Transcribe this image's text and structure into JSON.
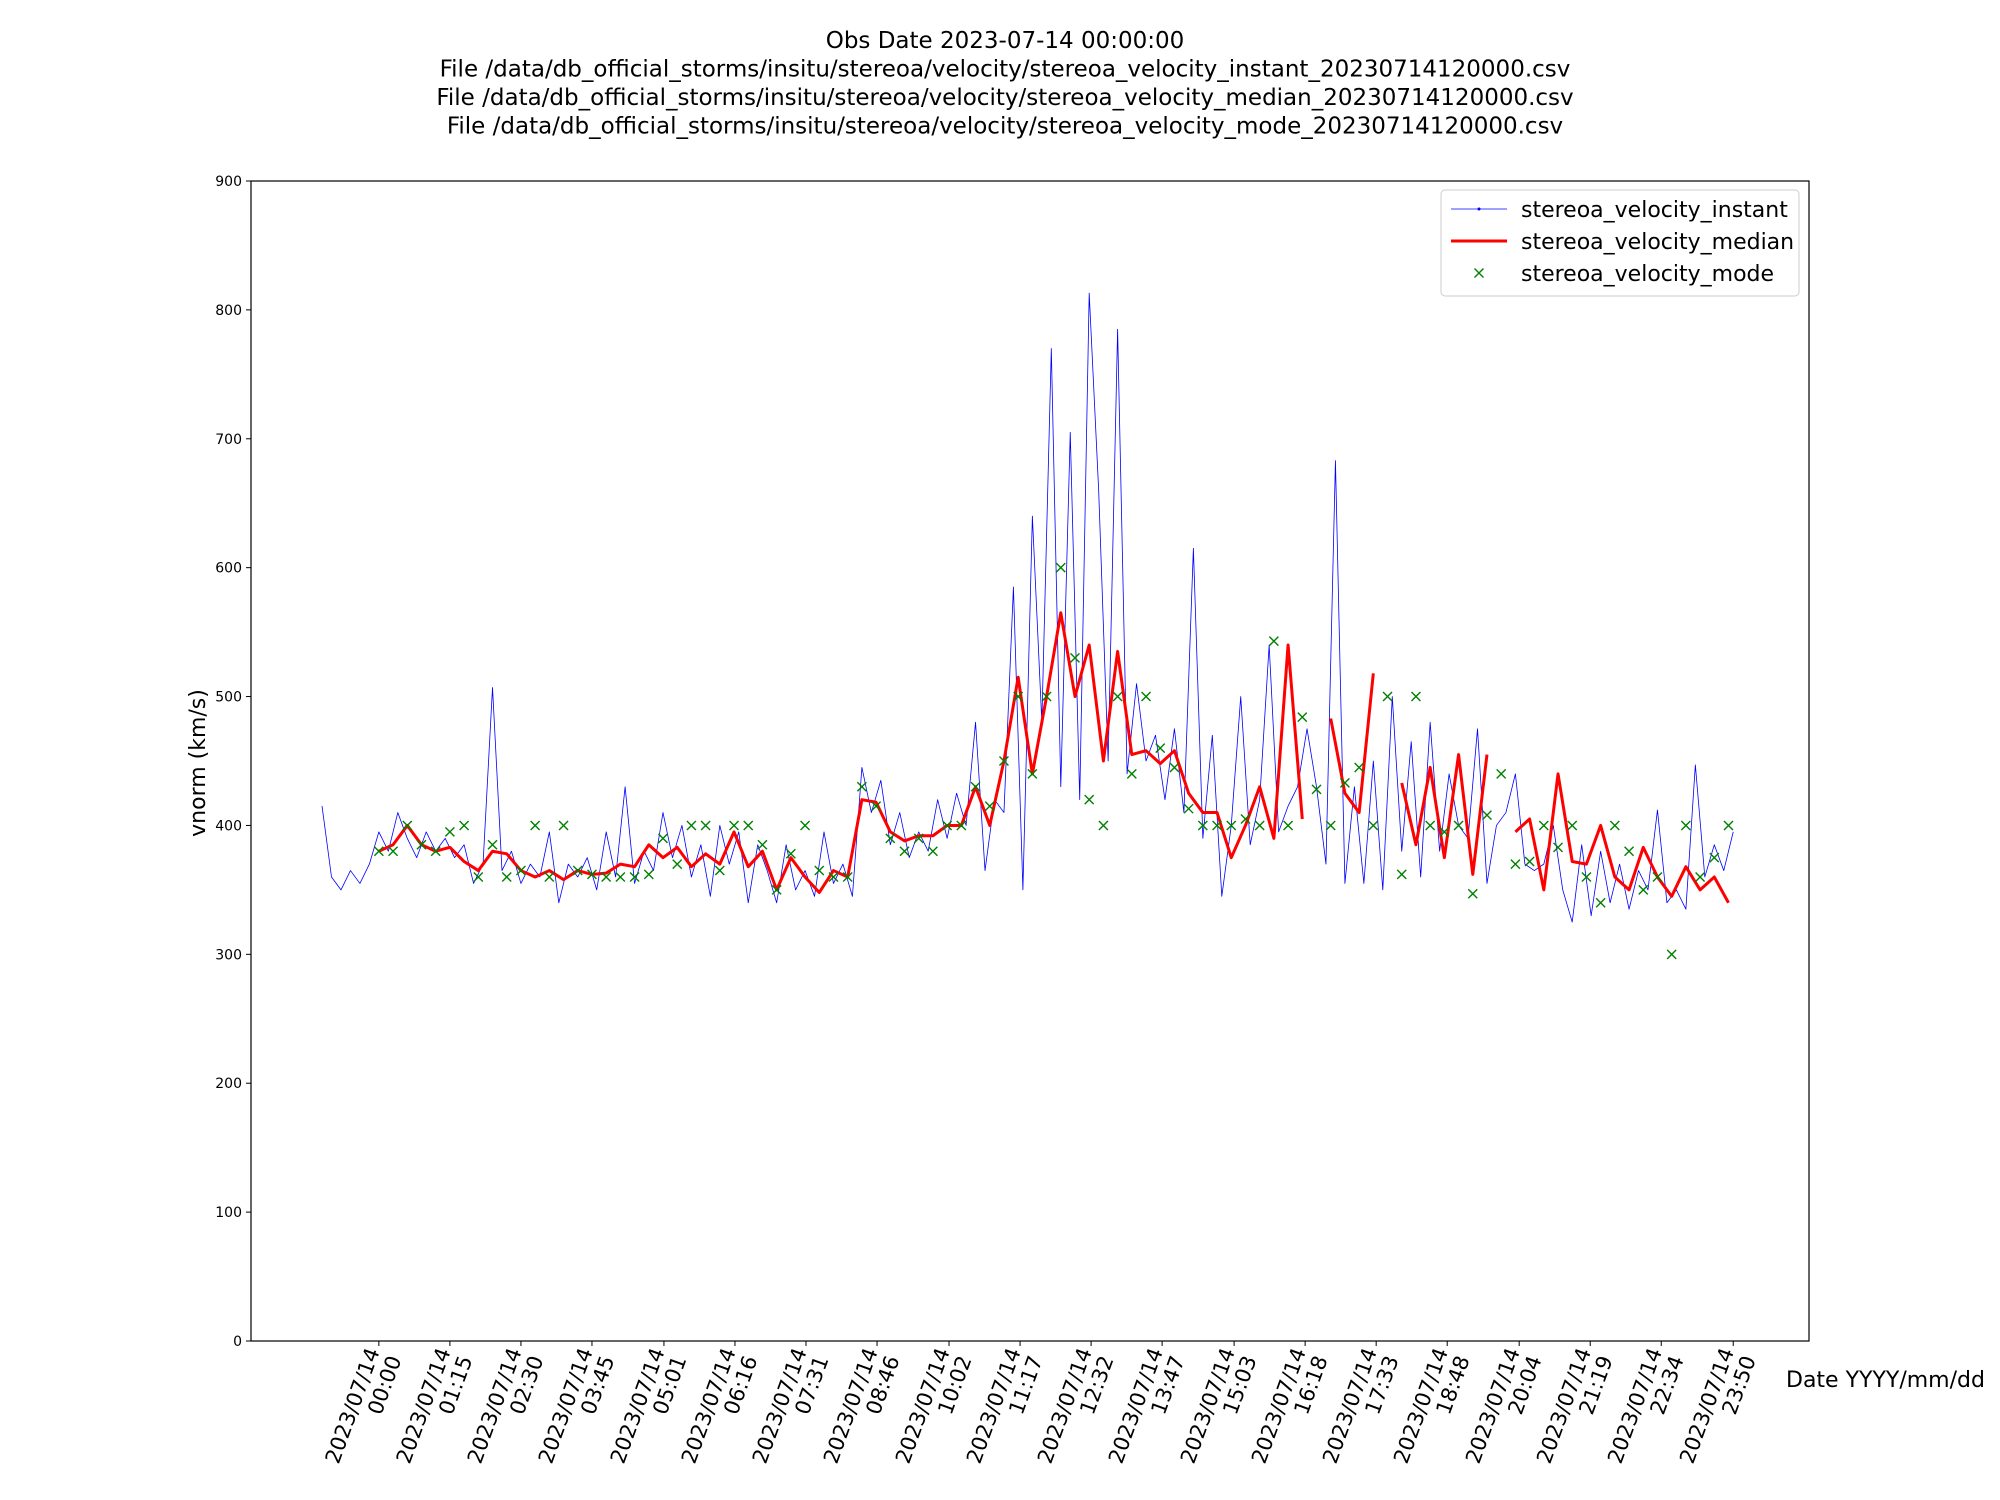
{
  "chart_data": {
    "type": "line",
    "title": [
      "Obs Date 2023-07-14 00:00:00",
      "File /data/db_official_storms/insitu/stereoa/velocity/stereoa_velocity_instant_20230714120000.csv",
      "File /data/db_official_storms/insitu/stereoa/velocity/stereoa_velocity_median_20230714120000.csv",
      "File /data/db_official_storms/insitu/stereoa/velocity/stereoa_velocity_mode_20230714120000.csv"
    ],
    "xlabel": "Date YYYY/mm/dd",
    "ylabel": "vnorm (km/s)",
    "xlim": [
      "2023-07-13T21:45",
      "2023-07-15T01:10"
    ],
    "ylim": [
      0,
      900
    ],
    "yticks": [
      0,
      100,
      200,
      300,
      400,
      500,
      600,
      700,
      800,
      900
    ],
    "xticks": [
      {
        "value": "2023-07-14T00:00",
        "label": "2023/07/14\n00:00"
      },
      {
        "value": "2023-07-14T01:15",
        "label": "2023/07/14\n01:15"
      },
      {
        "value": "2023-07-14T02:30",
        "label": "2023/07/14\n02:30"
      },
      {
        "value": "2023-07-14T03:45",
        "label": "2023/07/14\n03:45"
      },
      {
        "value": "2023-07-14T05:01",
        "label": "2023/07/14\n05:01"
      },
      {
        "value": "2023-07-14T06:16",
        "label": "2023/07/14\n06:16"
      },
      {
        "value": "2023-07-14T07:31",
        "label": "2023/07/14\n07:31"
      },
      {
        "value": "2023-07-14T08:46",
        "label": "2023/07/14\n08:46"
      },
      {
        "value": "2023-07-14T10:02",
        "label": "2023/07/14\n10:02"
      },
      {
        "value": "2023-07-14T11:17",
        "label": "2023/07/14\n11:17"
      },
      {
        "value": "2023-07-14T12:32",
        "label": "2023/07/14\n12:32"
      },
      {
        "value": "2023-07-14T13:47",
        "label": "2023/07/14\n13:47"
      },
      {
        "value": "2023-07-14T15:03",
        "label": "2023/07/14\n15:03"
      },
      {
        "value": "2023-07-14T16:18",
        "label": "2023/07/14\n16:18"
      },
      {
        "value": "2023-07-14T17:33",
        "label": "2023/07/14\n17:33"
      },
      {
        "value": "2023-07-14T18:48",
        "label": "2023/07/14\n18:48"
      },
      {
        "value": "2023-07-14T20:04",
        "label": "2023/07/14\n20:04"
      },
      {
        "value": "2023-07-14T21:19",
        "label": "2023/07/14\n21:19"
      },
      {
        "value": "2023-07-14T22:34",
        "label": "2023/07/14\n22:34"
      },
      {
        "value": "2023-07-14T23:50",
        "label": "2023/07/14\n23:50"
      }
    ],
    "legend": "upper right",
    "series": [
      {
        "name": "stereoa_velocity_instant",
        "color": "#0000ff",
        "style": "line",
        "x": [
          "2023-07-13T23:00",
          "2023-07-13T23:10",
          "2023-07-13T23:20",
          "2023-07-13T23:30",
          "2023-07-13T23:40",
          "2023-07-13T23:50",
          "2023-07-14T00:00",
          "2023-07-14T00:10",
          "2023-07-14T00:20",
          "2023-07-14T00:30",
          "2023-07-14T00:40",
          "2023-07-14T00:50",
          "2023-07-14T01:00",
          "2023-07-14T01:10",
          "2023-07-14T01:20",
          "2023-07-14T01:30",
          "2023-07-14T01:40",
          "2023-07-14T01:50",
          "2023-07-14T02:00",
          "2023-07-14T02:10",
          "2023-07-14T02:20",
          "2023-07-14T02:30",
          "2023-07-14T02:40",
          "2023-07-14T02:50",
          "2023-07-14T03:00",
          "2023-07-14T03:10",
          "2023-07-14T03:20",
          "2023-07-14T03:30",
          "2023-07-14T03:40",
          "2023-07-14T03:50",
          "2023-07-14T04:00",
          "2023-07-14T04:10",
          "2023-07-14T04:20",
          "2023-07-14T04:30",
          "2023-07-14T04:40",
          "2023-07-14T04:50",
          "2023-07-14T05:00",
          "2023-07-14T05:10",
          "2023-07-14T05:20",
          "2023-07-14T05:30",
          "2023-07-14T05:40",
          "2023-07-14T05:50",
          "2023-07-14T06:00",
          "2023-07-14T06:10",
          "2023-07-14T06:20",
          "2023-07-14T06:30",
          "2023-07-14T06:40",
          "2023-07-14T06:50",
          "2023-07-14T07:00",
          "2023-07-14T07:10",
          "2023-07-14T07:20",
          "2023-07-14T07:30",
          "2023-07-14T07:40",
          "2023-07-14T07:50",
          "2023-07-14T08:00",
          "2023-07-14T08:10",
          "2023-07-14T08:20",
          "2023-07-14T08:30",
          "2023-07-14T08:40",
          "2023-07-14T08:50",
          "2023-07-14T09:00",
          "2023-07-14T09:10",
          "2023-07-14T09:20",
          "2023-07-14T09:30",
          "2023-07-14T09:40",
          "2023-07-14T09:50",
          "2023-07-14T10:00",
          "2023-07-14T10:10",
          "2023-07-14T10:20",
          "2023-07-14T10:30",
          "2023-07-14T10:40",
          "2023-07-14T10:50",
          "2023-07-14T11:00",
          "2023-07-14T11:10",
          "2023-07-14T11:20",
          "2023-07-14T11:30",
          "2023-07-14T11:40",
          "2023-07-14T11:50",
          "2023-07-14T12:00",
          "2023-07-14T12:10",
          "2023-07-14T12:20",
          "2023-07-14T12:30",
          "2023-07-14T12:40",
          "2023-07-14T12:50",
          "2023-07-14T13:00",
          "2023-07-14T13:10",
          "2023-07-14T13:20",
          "2023-07-14T13:30",
          "2023-07-14T13:40",
          "2023-07-14T13:50",
          "2023-07-14T14:00",
          "2023-07-14T14:10",
          "2023-07-14T14:20",
          "2023-07-14T14:30",
          "2023-07-14T14:40",
          "2023-07-14T14:50",
          "2023-07-14T15:00",
          "2023-07-14T15:10",
          "2023-07-14T15:20",
          "2023-07-14T15:30",
          "2023-07-14T15:40",
          "2023-07-14T15:50",
          "2023-07-14T16:00",
          "2023-07-14T16:10",
          "2023-07-14T16:20",
          "2023-07-14T16:30",
          "2023-07-14T16:40",
          "2023-07-14T16:50",
          "2023-07-14T17:00",
          "2023-07-14T17:10",
          "2023-07-14T17:20",
          "2023-07-14T17:30",
          "2023-07-14T17:40",
          "2023-07-14T17:50",
          "2023-07-14T18:00",
          "2023-07-14T18:10",
          "2023-07-14T18:20",
          "2023-07-14T18:30",
          "2023-07-14T18:40",
          "2023-07-14T18:50",
          "2023-07-14T19:00",
          "2023-07-14T19:10",
          "2023-07-14T19:20",
          "2023-07-14T19:30",
          "2023-07-14T19:40",
          "2023-07-14T19:50",
          "2023-07-14T20:00",
          "2023-07-14T20:10",
          "2023-07-14T20:20",
          "2023-07-14T20:30",
          "2023-07-14T20:40",
          "2023-07-14T20:50",
          "2023-07-14T21:00",
          "2023-07-14T21:10",
          "2023-07-14T21:20",
          "2023-07-14T21:30",
          "2023-07-14T21:40",
          "2023-07-14T21:50",
          "2023-07-14T22:00",
          "2023-07-14T22:10",
          "2023-07-14T22:20",
          "2023-07-14T22:30",
          "2023-07-14T22:40",
          "2023-07-14T22:50",
          "2023-07-14T23:00",
          "2023-07-14T23:10",
          "2023-07-14T23:20",
          "2023-07-14T23:30",
          "2023-07-14T23:40",
          "2023-07-14T23:50"
        ],
        "values": [
          415,
          360,
          350,
          365,
          355,
          370,
          395,
          380,
          410,
          390,
          375,
          395,
          380,
          390,
          375,
          385,
          355,
          370,
          507,
          365,
          380,
          355,
          370,
          360,
          395,
          340,
          370,
          360,
          375,
          350,
          395,
          360,
          430,
          355,
          380,
          365,
          410,
          375,
          400,
          360,
          385,
          345,
          400,
          370,
          395,
          340,
          385,
          365,
          340,
          385,
          350,
          365,
          345,
          395,
          355,
          370,
          345,
          445,
          410,
          435,
          385,
          410,
          375,
          395,
          380,
          420,
          390,
          425,
          400,
          480,
          365,
          420,
          410,
          585,
          350,
          640,
          480,
          770,
          430,
          705,
          420,
          813,
          660,
          450,
          785,
          440,
          510,
          450,
          470,
          420,
          475,
          410,
          615,
          390,
          470,
          345,
          400,
          500,
          385,
          420,
          540,
          395,
          415,
          430,
          475,
          430,
          370,
          683,
          355,
          430,
          355,
          450,
          350,
          500,
          380,
          465,
          360,
          480,
          380,
          440,
          400,
          390,
          475,
          355,
          400,
          410,
          440,
          370,
          365,
          370,
          400,
          350,
          325,
          385,
          330,
          380,
          340,
          370,
          335,
          365,
          350,
          412,
          340,
          350,
          335,
          447,
          360,
          385,
          365,
          395
        ]
      },
      {
        "name": "stereoa_velocity_median",
        "color": "#ff0000",
        "style": "line",
        "x": [
          "2023-07-14T00:00",
          "2023-07-14T00:15",
          "2023-07-14T00:30",
          "2023-07-14T00:45",
          "2023-07-14T01:00",
          "2023-07-14T01:15",
          "2023-07-14T01:30",
          "2023-07-14T01:45",
          "2023-07-14T02:00",
          "2023-07-14T02:15",
          "2023-07-14T02:30",
          "2023-07-14T02:45",
          "2023-07-14T03:00",
          "2023-07-14T03:15",
          "2023-07-14T03:30",
          "2023-07-14T03:45",
          "2023-07-14T04:00",
          "2023-07-14T04:15",
          "2023-07-14T04:30",
          "2023-07-14T04:45",
          "2023-07-14T05:00",
          "2023-07-14T05:15",
          "2023-07-14T05:30",
          "2023-07-14T05:45",
          "2023-07-14T06:00",
          "2023-07-14T06:15",
          "2023-07-14T06:30",
          "2023-07-14T06:45",
          "2023-07-14T07:00",
          "2023-07-14T07:15",
          "2023-07-14T07:30",
          "2023-07-14T07:45",
          "2023-07-14T08:00",
          "2023-07-14T08:15",
          "2023-07-14T08:30",
          "2023-07-14T08:45",
          "2023-07-14T09:00",
          "2023-07-14T09:15",
          "2023-07-14T09:30",
          "2023-07-14T09:45",
          "2023-07-14T10:00",
          "2023-07-14T10:15",
          "2023-07-14T10:30",
          "2023-07-14T10:45",
          "2023-07-14T11:00",
          "2023-07-14T11:15",
          "2023-07-14T11:30",
          "2023-07-14T11:45",
          "2023-07-14T12:00",
          "2023-07-14T12:15",
          "2023-07-14T12:30",
          "2023-07-14T12:45",
          "2023-07-14T13:00",
          "2023-07-14T13:15",
          "2023-07-14T13:30",
          "2023-07-14T13:45",
          "2023-07-14T14:00",
          "2023-07-14T14:15",
          "2023-07-14T14:30",
          "2023-07-14T14:45",
          "2023-07-14T15:00",
          "2023-07-14T15:15",
          "2023-07-14T15:30",
          "2023-07-14T15:45",
          "2023-07-14T16:00",
          "2023-07-14T16:15",
          "2023-07-14T16:30",
          "2023-07-14T16:45",
          "2023-07-14T17:00",
          "2023-07-14T17:15",
          "2023-07-14T17:30",
          "2023-07-14T17:45",
          "2023-07-14T18:00",
          "2023-07-14T18:15",
          "2023-07-14T18:30",
          "2023-07-14T18:45",
          "2023-07-14T19:00",
          "2023-07-14T19:15",
          "2023-07-14T19:30",
          "2023-07-14T19:45",
          "2023-07-14T20:00",
          "2023-07-14T20:15",
          "2023-07-14T20:30",
          "2023-07-14T20:45",
          "2023-07-14T21:00",
          "2023-07-14T21:15",
          "2023-07-14T21:30",
          "2023-07-14T21:45",
          "2023-07-14T22:00",
          "2023-07-14T22:15",
          "2023-07-14T22:30",
          "2023-07-14T22:45",
          "2023-07-14T23:00",
          "2023-07-14T23:15",
          "2023-07-14T23:30",
          "2023-07-14T23:45"
        ],
        "values": [
          380,
          385,
          400,
          385,
          380,
          383,
          372,
          365,
          380,
          378,
          365,
          360,
          365,
          358,
          365,
          362,
          363,
          370,
          368,
          385,
          375,
          383,
          368,
          378,
          370,
          395,
          368,
          380,
          350,
          375,
          360,
          348,
          365,
          360,
          420,
          418,
          395,
          388,
          392,
          392,
          400,
          400,
          430,
          400,
          450,
          515,
          440,
          500,
          565,
          500,
          540,
          450,
          535,
          455,
          458,
          448,
          458,
          425,
          410,
          410,
          375,
          400,
          430,
          390,
          540,
          405,
          null,
          483,
          425,
          410,
          518,
          null,
          433,
          385,
          445,
          375,
          455,
          362,
          455,
          null,
          395,
          405,
          350,
          440,
          372,
          370,
          400,
          360,
          350,
          383,
          360,
          345,
          368,
          350,
          360,
          340
        ]
      },
      {
        "name": "stereoa_velocity_mode",
        "color": "#008000",
        "style": "marker",
        "x": [
          "2023-07-14T00:00",
          "2023-07-14T00:15",
          "2023-07-14T00:30",
          "2023-07-14T00:45",
          "2023-07-14T01:00",
          "2023-07-14T01:15",
          "2023-07-14T01:30",
          "2023-07-14T01:45",
          "2023-07-14T02:00",
          "2023-07-14T02:15",
          "2023-07-14T02:30",
          "2023-07-14T02:45",
          "2023-07-14T03:00",
          "2023-07-14T03:15",
          "2023-07-14T03:30",
          "2023-07-14T03:45",
          "2023-07-14T04:00",
          "2023-07-14T04:15",
          "2023-07-14T04:30",
          "2023-07-14T04:45",
          "2023-07-14T05:00",
          "2023-07-14T05:15",
          "2023-07-14T05:30",
          "2023-07-14T05:45",
          "2023-07-14T06:00",
          "2023-07-14T06:15",
          "2023-07-14T06:30",
          "2023-07-14T06:45",
          "2023-07-14T07:00",
          "2023-07-14T07:15",
          "2023-07-14T07:30",
          "2023-07-14T07:45",
          "2023-07-14T08:00",
          "2023-07-14T08:15",
          "2023-07-14T08:30",
          "2023-07-14T08:45",
          "2023-07-14T09:00",
          "2023-07-14T09:15",
          "2023-07-14T09:30",
          "2023-07-14T09:45",
          "2023-07-14T10:00",
          "2023-07-14T10:15",
          "2023-07-14T10:30",
          "2023-07-14T10:45",
          "2023-07-14T11:00",
          "2023-07-14T11:15",
          "2023-07-14T11:30",
          "2023-07-14T11:45",
          "2023-07-14T12:00",
          "2023-07-14T12:15",
          "2023-07-14T12:30",
          "2023-07-14T12:45",
          "2023-07-14T13:00",
          "2023-07-14T13:15",
          "2023-07-14T13:30",
          "2023-07-14T13:45",
          "2023-07-14T14:00",
          "2023-07-14T14:15",
          "2023-07-14T14:30",
          "2023-07-14T14:45",
          "2023-07-14T15:00",
          "2023-07-14T15:15",
          "2023-07-14T15:30",
          "2023-07-14T15:45",
          "2023-07-14T16:00",
          "2023-07-14T16:15",
          "2023-07-14T16:30",
          "2023-07-14T16:45",
          "2023-07-14T17:00",
          "2023-07-14T17:15",
          "2023-07-14T17:30",
          "2023-07-14T17:45",
          "2023-07-14T18:00",
          "2023-07-14T18:15",
          "2023-07-14T18:30",
          "2023-07-14T18:45",
          "2023-07-14T19:00",
          "2023-07-14T19:15",
          "2023-07-14T19:30",
          "2023-07-14T19:45",
          "2023-07-14T20:00",
          "2023-07-14T20:15",
          "2023-07-14T20:30",
          "2023-07-14T20:45",
          "2023-07-14T21:00",
          "2023-07-14T21:15",
          "2023-07-14T21:30",
          "2023-07-14T21:45",
          "2023-07-14T22:00",
          "2023-07-14T22:15",
          "2023-07-14T22:30",
          "2023-07-14T22:45",
          "2023-07-14T23:00",
          "2023-07-14T23:15",
          "2023-07-14T23:30",
          "2023-07-14T23:45"
        ],
        "values": [
          380,
          380,
          400,
          385,
          380,
          395,
          400,
          360,
          385,
          360,
          365,
          400,
          360,
          400,
          365,
          362,
          360,
          360,
          360,
          362,
          390,
          370,
          400,
          400,
          365,
          400,
          400,
          385,
          350,
          378,
          400,
          365,
          360,
          360,
          430,
          415,
          390,
          380,
          390,
          380,
          400,
          400,
          430,
          415,
          450,
          500,
          440,
          500,
          600,
          530,
          420,
          400,
          500,
          440,
          500,
          460,
          445,
          413,
          400,
          400,
          400,
          405,
          400,
          543,
          400,
          484,
          428,
          400,
          433,
          445,
          400,
          500,
          362,
          500,
          400,
          395,
          400,
          347,
          408,
          440,
          370,
          372,
          400,
          383,
          400,
          360,
          340,
          400,
          380,
          350,
          360,
          300,
          400,
          360,
          375,
          400
        ]
      }
    ]
  }
}
